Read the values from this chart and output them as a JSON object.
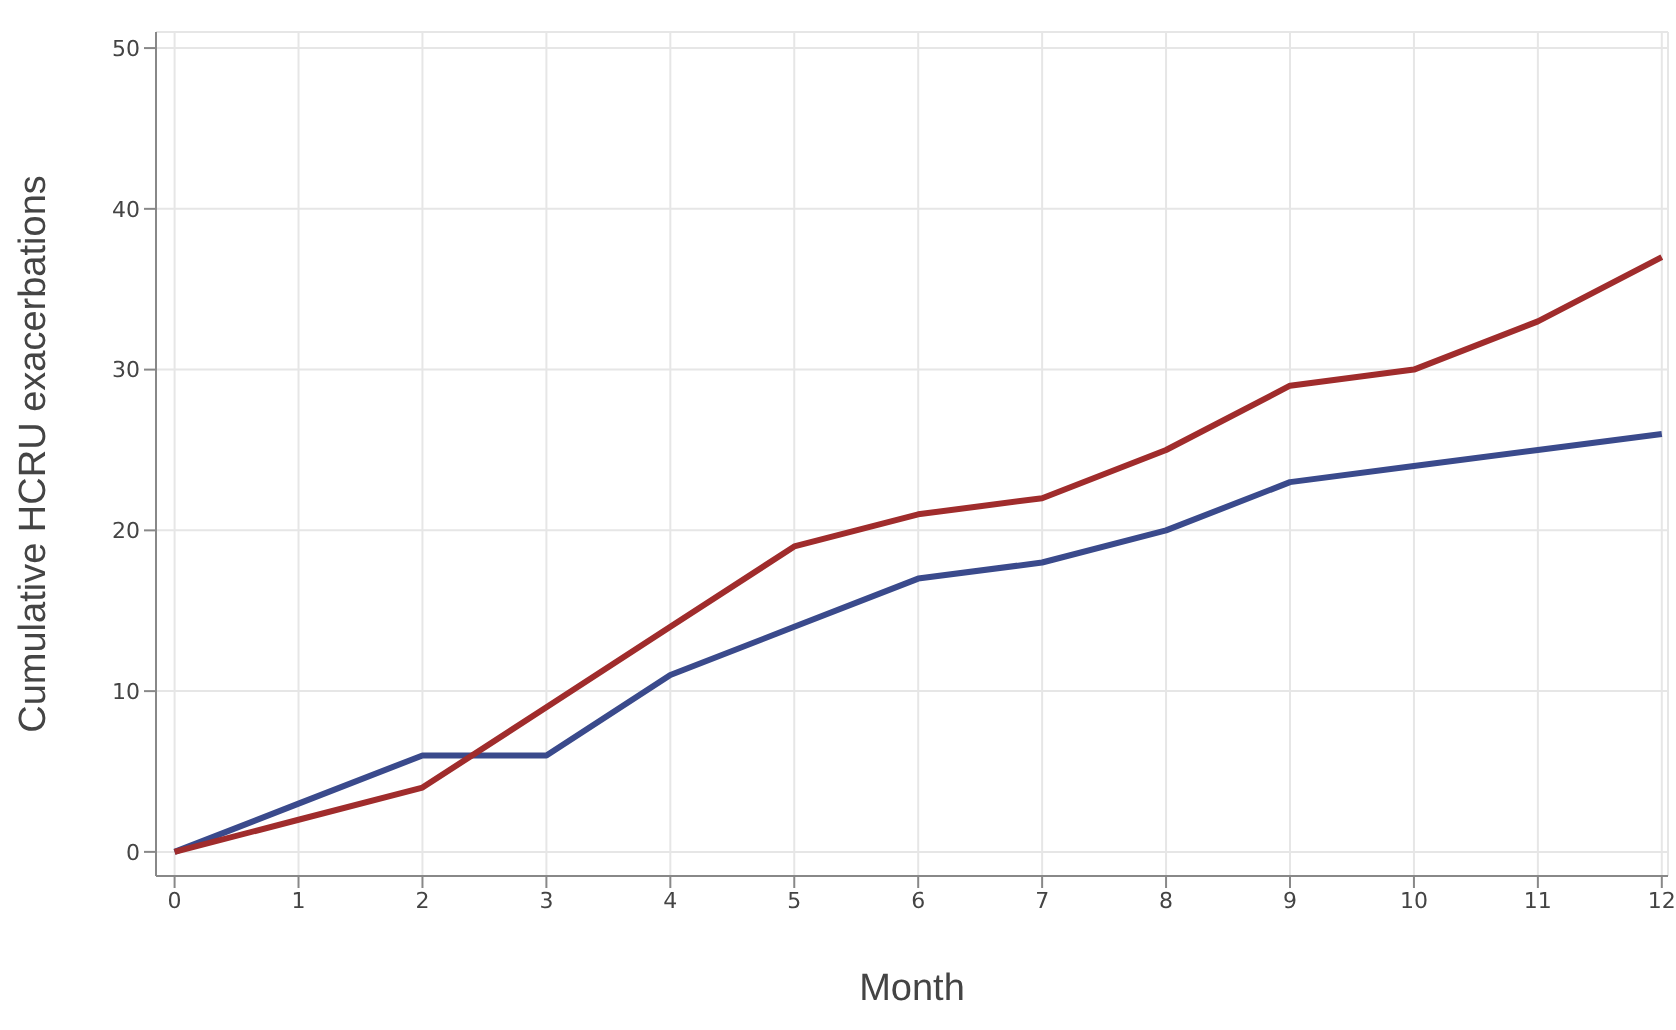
{
  "chart_data": {
    "type": "line",
    "xlabel": "Month",
    "ylabel": "Cumulative HCRU exacerbations",
    "x": [
      0,
      1,
      2,
      3,
      4,
      5,
      6,
      7,
      8,
      9,
      10,
      11,
      12
    ],
    "series": [
      {
        "color": "#3a4a8c",
        "values": [
          0,
          3,
          6,
          6,
          11,
          14,
          17,
          18,
          20,
          23,
          24,
          25,
          26
        ]
      },
      {
        "color": "#a02c2c",
        "values": [
          0,
          2,
          4,
          9,
          14,
          19,
          21,
          22,
          25,
          29,
          30,
          33,
          37
        ]
      }
    ],
    "xlim": [
      -0.15,
      12.05
    ],
    "xticks": [
      0,
      1,
      2,
      3,
      4,
      5,
      6,
      7,
      8,
      9,
      10,
      11,
      12
    ],
    "ylim": [
      -1.5,
      51
    ],
    "yticks": [
      0,
      10,
      20,
      30,
      40,
      50
    ],
    "grid": true,
    "legend": false,
    "marker": "none",
    "line_style": "solid"
  }
}
